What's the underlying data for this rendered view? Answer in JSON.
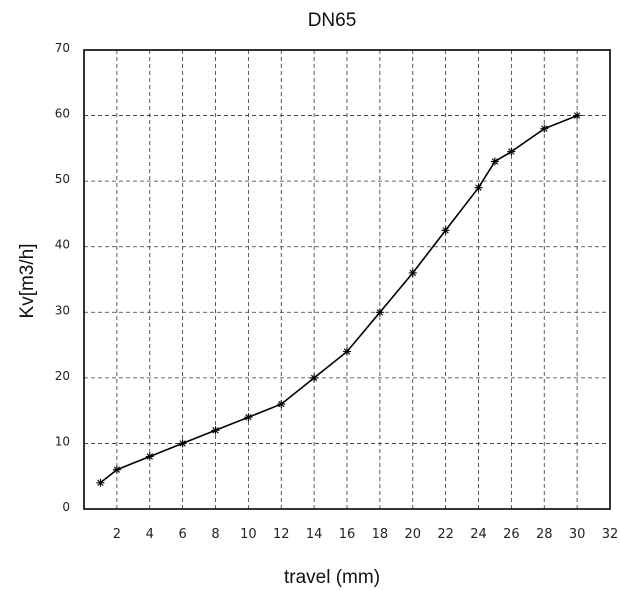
{
  "chart_data": {
    "type": "line",
    "title": "DN65",
    "xlabel": "travel (mm)",
    "ylabel": "Kv[m3/h]",
    "xlim": [
      0,
      32
    ],
    "ylim": [
      0,
      70
    ],
    "x_ticks": [
      2,
      4,
      6,
      8,
      10,
      12,
      14,
      16,
      18,
      20,
      22,
      24,
      26,
      28,
      30,
      32
    ],
    "y_ticks": [
      0,
      10,
      20,
      30,
      40,
      50,
      60,
      70
    ],
    "grid": true,
    "legend": "none",
    "series": [
      {
        "marker": "star",
        "color": "#000000",
        "x": [
          1,
          2,
          4,
          6,
          8,
          10,
          12,
          14,
          16,
          18,
          20,
          22,
          24,
          25,
          26,
          28,
          30
        ],
        "y": [
          4,
          6,
          8,
          10,
          12,
          14,
          16,
          20,
          24,
          30,
          36,
          42.5,
          49,
          53,
          54.5,
          58,
          60
        ]
      }
    ]
  }
}
